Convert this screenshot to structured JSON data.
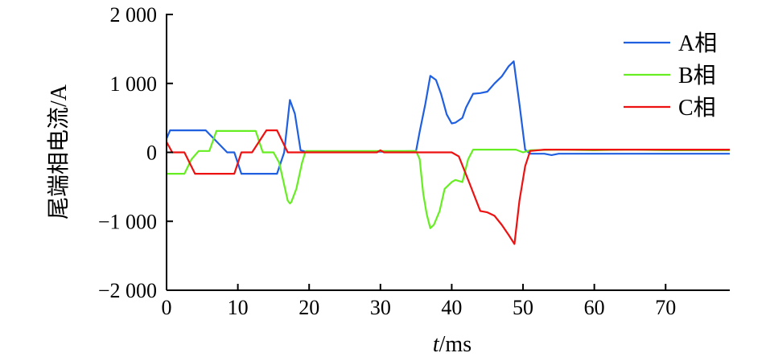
{
  "chart_data": {
    "type": "line",
    "title": "",
    "xlabel_italic": "t",
    "xlabel_rest": "/ms",
    "ylabel": "尾端相电流/A",
    "xlim": [
      0,
      79
    ],
    "ylim": [
      -2000,
      2000
    ],
    "xticks": [
      0,
      10,
      20,
      30,
      40,
      50,
      60,
      70
    ],
    "xtick_labels": [
      "0",
      "10",
      "20",
      "30",
      "40",
      "50",
      "60",
      "70"
    ],
    "yticks": [
      2000,
      1000,
      0,
      -1000,
      -2000
    ],
    "ytick_labels": [
      "2 000",
      "1 000",
      "0",
      "−1 000",
      "−2 000"
    ],
    "grid": false,
    "legend_position": "top-right",
    "series": [
      {
        "name": "A相",
        "color": "#1f5fe0",
        "x": [
          0,
          0.5,
          5.5,
          8.5,
          9.5,
          10.5,
          15.5,
          16.5,
          17.3,
          18,
          18.8,
          19.5,
          25,
          30,
          35,
          35.5,
          36.3,
          37,
          37.8,
          38.5,
          39.3,
          40,
          40.5,
          41.5,
          42,
          43,
          44,
          45,
          46,
          47,
          48,
          48.7,
          49.5,
          50.3,
          51,
          52,
          53,
          54,
          55,
          60,
          65,
          70,
          75,
          79
        ],
        "y": [
          200,
          320,
          320,
          0,
          0,
          -310,
          -310,
          0,
          760,
          560,
          30,
          10,
          10,
          10,
          20,
          300,
          700,
          1110,
          1050,
          850,
          550,
          420,
          430,
          500,
          650,
          850,
          860,
          880,
          1000,
          1100,
          1250,
          1320,
          700,
          40,
          -20,
          -20,
          -20,
          -40,
          -20,
          -20,
          -20,
          -20,
          -20,
          -20
        ]
      },
      {
        "name": "B相",
        "color": "#66ee22",
        "x": [
          0,
          2.5,
          3.5,
          4.5,
          6,
          7,
          12.5,
          13.5,
          15,
          15.8,
          17,
          17.3,
          17.5,
          18.2,
          19,
          19.5,
          25,
          30,
          35,
          35.5,
          36,
          36.5,
          37,
          37.5,
          38.3,
          39,
          40,
          40.5,
          41.5,
          42.3,
          43,
          44,
          45,
          47,
          48.5,
          49,
          50,
          51,
          55,
          60,
          65,
          70,
          75,
          79
        ],
        "y": [
          -310,
          -310,
          -100,
          20,
          20,
          310,
          310,
          0,
          0,
          -150,
          -700,
          -740,
          -720,
          -530,
          -150,
          20,
          20,
          20,
          20,
          -100,
          -600,
          -900,
          -1100,
          -1050,
          -850,
          -530,
          -430,
          -400,
          -430,
          -100,
          40,
          40,
          40,
          40,
          40,
          40,
          0,
          30,
          40,
          30,
          40,
          30,
          30,
          30
        ]
      },
      {
        "name": "C相",
        "color": "#ee1111",
        "x": [
          0,
          0.8,
          2.5,
          4,
          5.5,
          9.5,
          10.5,
          12,
          14,
          15.5,
          17,
          17.5,
          19.5,
          25,
          29.5,
          30,
          30.5,
          35,
          40,
          41,
          42.5,
          44,
          45,
          46,
          47,
          48,
          48.8,
          49.5,
          50.3,
          51,
          53,
          55,
          60,
          65,
          70,
          75,
          79
        ],
        "y": [
          150,
          0,
          0,
          -310,
          -310,
          -310,
          0,
          0,
          320,
          320,
          0,
          0,
          0,
          0,
          0,
          30,
          0,
          0,
          0,
          -60,
          -450,
          -850,
          -870,
          -920,
          -1050,
          -1200,
          -1330,
          -700,
          -200,
          20,
          40,
          40,
          40,
          40,
          40,
          40,
          40
        ]
      }
    ]
  }
}
